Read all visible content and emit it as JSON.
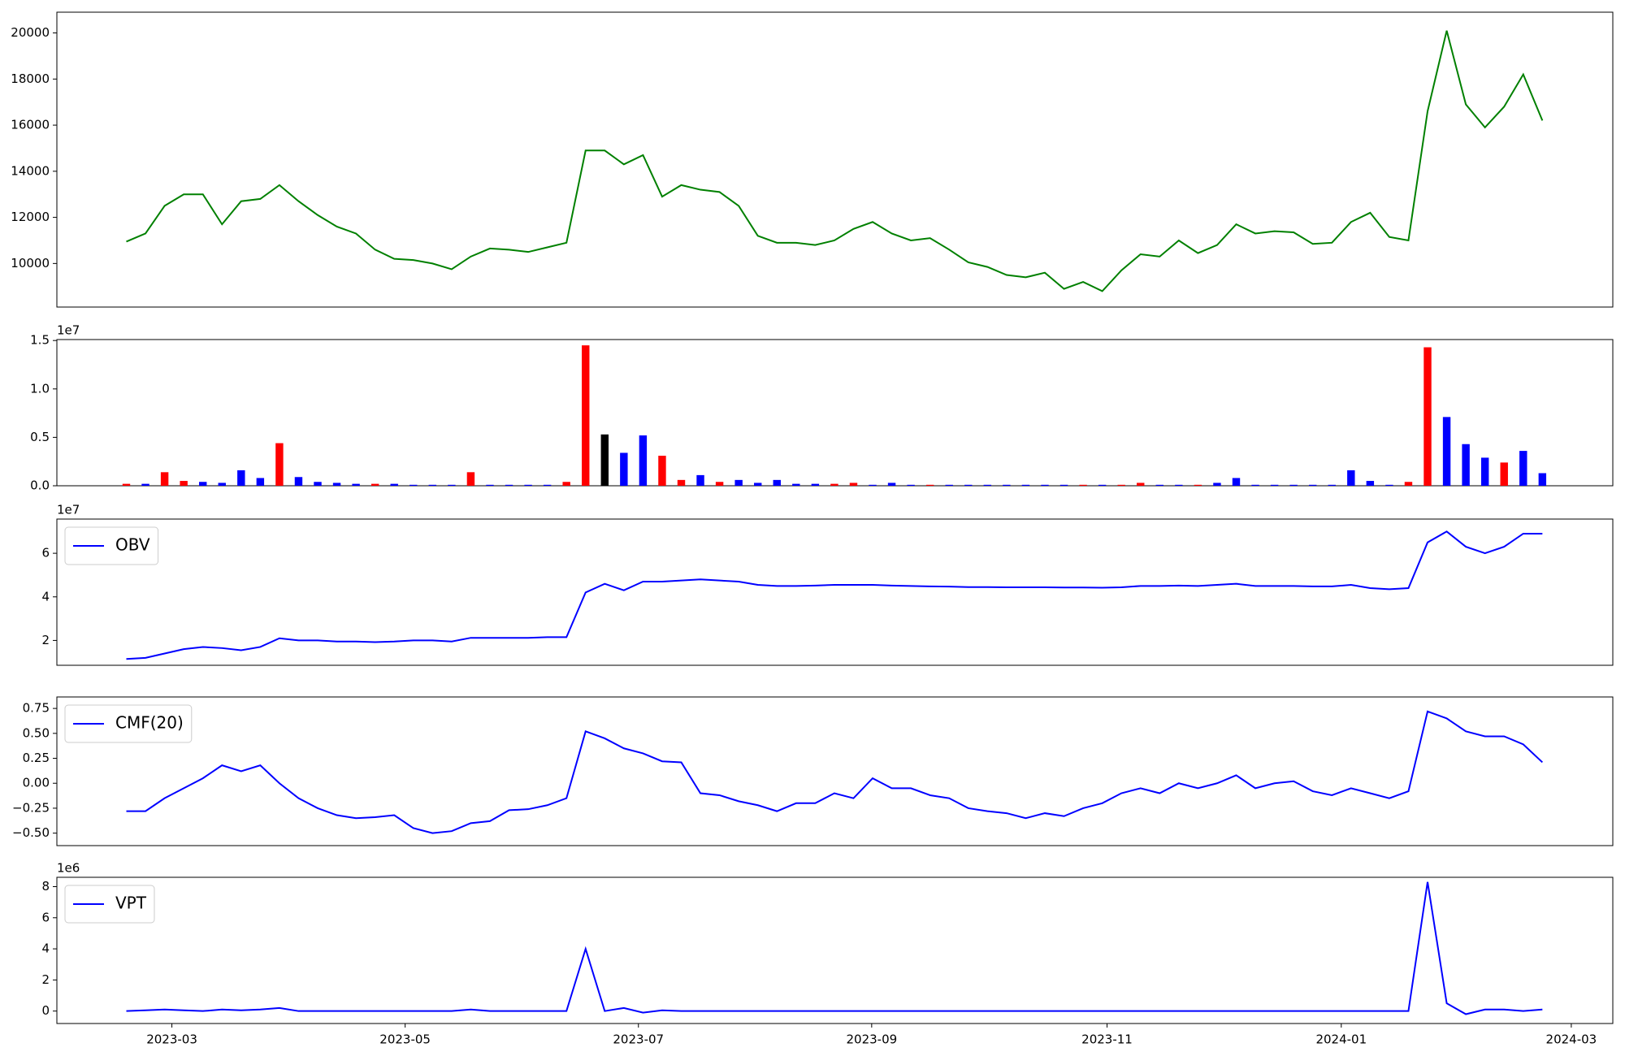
{
  "chart_data": [
    {
      "type": "line",
      "xlim": [
        -3.63,
        77.68
      ],
      "ylim": [
        8110,
        20900
      ],
      "yticks": [
        10000,
        12000,
        14000,
        16000,
        18000,
        20000
      ],
      "series": [
        {
          "color": "#008000",
          "values": [
            10950,
            11300,
            12500,
            13000,
            13000,
            11700,
            12700,
            12800,
            13400,
            12700,
            12100,
            11600,
            11300,
            10600,
            10200,
            10150,
            10000,
            9750,
            10300,
            10650,
            10600,
            10500,
            10700,
            10900,
            14900,
            14900,
            14300,
            14700,
            12900,
            13400,
            13200,
            13100,
            12500,
            11200,
            10900,
            10900,
            10800,
            11000,
            11500,
            11800,
            11300,
            11000,
            11100,
            10600,
            10050,
            9850,
            9500,
            9400,
            9600,
            8900,
            9200,
            8800,
            9700,
            10400,
            10300,
            11000,
            10450,
            10800,
            11700,
            11300,
            11400,
            11350,
            10850,
            10900,
            11800,
            12200,
            11150,
            11000,
            16600,
            20100,
            16900,
            15900,
            16800,
            18200,
            16200
          ]
        }
      ]
    },
    {
      "type": "bar",
      "xlim": [
        -3.63,
        77.68
      ],
      "ylim": [
        0,
        15100000
      ],
      "y_offset_label": "1e7",
      "yticks": [
        {
          "value": 0,
          "label": "0.0"
        },
        {
          "value": 5000000,
          "label": "0.5"
        },
        {
          "value": 10000000,
          "label": "1.0"
        },
        {
          "value": 15000000,
          "label": "1.5"
        }
      ],
      "values": [
        200000,
        200000,
        1400000,
        500000,
        400000,
        300000,
        1600000,
        800000,
        4400000,
        900000,
        400000,
        300000,
        200000,
        200000,
        200000,
        100000,
        100000,
        100000,
        1400000,
        100000,
        100000,
        100000,
        100000,
        400000,
        14500000,
        5300000,
        3400000,
        5200000,
        3100000,
        600000,
        1100000,
        400000,
        600000,
        300000,
        600000,
        200000,
        200000,
        200000,
        300000,
        100000,
        300000,
        100000,
        100000,
        100000,
        100000,
        100000,
        100000,
        100000,
        100000,
        100000,
        100000,
        100000,
        100000,
        300000,
        100000,
        100000,
        100000,
        300000,
        800000,
        100000,
        100000,
        100000,
        100000,
        100000,
        1600000,
        500000,
        100000,
        400000,
        14300000,
        7100000,
        4300000,
        2900000,
        2400000,
        3600000,
        1300000
      ],
      "colors": [
        "red",
        "blue",
        "red",
        "red",
        "blue",
        "blue",
        "blue",
        "blue",
        "red",
        "blue",
        "blue",
        "blue",
        "blue",
        "red",
        "blue",
        "blue",
        "blue",
        "blue",
        "red",
        "blue",
        "blue",
        "blue",
        "blue",
        "red",
        "red",
        "black",
        "blue",
        "blue",
        "red",
        "red",
        "blue",
        "red",
        "blue",
        "blue",
        "blue",
        "blue",
        "blue",
        "red",
        "red",
        "blue",
        "blue",
        "blue",
        "red",
        "blue",
        "blue",
        "blue",
        "blue",
        "blue",
        "blue",
        "blue",
        "red",
        "blue",
        "red",
        "red",
        "blue",
        "blue",
        "red",
        "blue",
        "blue",
        "blue",
        "blue",
        "blue",
        "blue",
        "blue",
        "blue",
        "blue",
        "blue",
        "red",
        "red",
        "blue",
        "blue",
        "blue",
        "red",
        "blue",
        "blue"
      ]
    },
    {
      "type": "line",
      "xlim": [
        -3.63,
        77.68
      ],
      "ylim": [
        8600000,
        75700000
      ],
      "y_offset_label": "1e7",
      "legend": "upper left",
      "yticks": [
        {
          "value": 20000000,
          "label": "2"
        },
        {
          "value": 40000000,
          "label": "4"
        },
        {
          "value": 60000000,
          "label": "6"
        }
      ],
      "series": [
        {
          "name": "OBV",
          "color": "blue",
          "values": [
            11500000,
            12000000,
            14000000,
            16000000,
            17000000,
            16500000,
            15500000,
            17000000,
            21000000,
            20000000,
            20000000,
            19500000,
            19500000,
            19200000,
            19500000,
            20000000,
            20000000,
            19500000,
            21200000,
            21200000,
            21200000,
            21200000,
            21500000,
            21500000,
            42000000,
            46000000,
            43000000,
            47000000,
            47000000,
            47500000,
            48000000,
            47500000,
            47000000,
            45500000,
            45000000,
            45000000,
            45200000,
            45500000,
            45500000,
            45500000,
            45200000,
            45000000,
            44800000,
            44700000,
            44500000,
            44500000,
            44400000,
            44400000,
            44400000,
            44300000,
            44300000,
            44200000,
            44400000,
            45000000,
            45000000,
            45200000,
            45000000,
            45500000,
            46000000,
            45000000,
            45000000,
            45000000,
            44800000,
            44800000,
            45500000,
            44000000,
            43500000,
            44000000,
            65000000,
            70000000,
            63000000,
            60000000,
            63000000,
            69000000,
            69000000
          ]
        }
      ]
    },
    {
      "type": "line",
      "xlim": [
        -3.63,
        77.68
      ],
      "ylim": [
        -0.625,
        0.865
      ],
      "legend": "upper left",
      "yticks": [
        {
          "value": -0.5,
          "label": "−0.50"
        },
        {
          "value": -0.25,
          "label": "−0.25"
        },
        {
          "value": 0,
          "label": "0.00"
        },
        0.25,
        {
          "value": 0.5,
          "label": "0.50"
        },
        0.75
      ],
      "series": [
        {
          "name": "CMF(20)",
          "color": "blue",
          "values": [
            -0.28,
            -0.28,
            -0.15,
            -0.05,
            0.05,
            0.18,
            0.12,
            0.18,
            0,
            -0.15,
            -0.25,
            -0.32,
            -0.35,
            -0.34,
            -0.32,
            -0.45,
            -0.5,
            -0.48,
            -0.4,
            -0.38,
            -0.27,
            -0.26,
            -0.22,
            -0.15,
            0.52,
            0.45,
            0.35,
            0.3,
            0.22,
            0.21,
            -0.1,
            -0.12,
            -0.18,
            -0.22,
            -0.28,
            -0.2,
            -0.2,
            -0.1,
            -0.15,
            0.05,
            -0.05,
            -0.05,
            -0.12,
            -0.15,
            -0.25,
            -0.28,
            -0.3,
            -0.35,
            -0.3,
            -0.33,
            -0.25,
            -0.2,
            -0.1,
            -0.05,
            -0.1,
            0,
            -0.05,
            0,
            0.08,
            -0.05,
            0,
            0.02,
            -0.08,
            -0.12,
            -0.05,
            -0.1,
            -0.15,
            -0.08,
            0.72,
            0.65,
            0.52,
            0.47,
            0.47,
            0.39,
            0.21
          ]
        }
      ]
    },
    {
      "type": "line",
      "xlim": [
        -3.63,
        77.68
      ],
      "ylim": [
        -800000,
        8600000
      ],
      "y_offset_label": "1e6",
      "legend": "upper left",
      "yticks": [
        0,
        {
          "value": 2000000,
          "label": "2"
        },
        {
          "value": 4000000,
          "label": "4"
        },
        {
          "value": 6000000,
          "label": "6"
        },
        {
          "value": 8000000,
          "label": "8"
        }
      ],
      "xticks": [
        {
          "value": 2.38,
          "label": "2023-03"
        },
        {
          "value": 14.57,
          "label": "2023-05"
        },
        {
          "value": 26.76,
          "label": "2023-07"
        },
        {
          "value": 38.95,
          "label": "2023-09"
        },
        {
          "value": 51.25,
          "label": "2023-11"
        },
        {
          "value": 63.49,
          "label": "2024-01"
        },
        {
          "value": 75.51,
          "label": "2024-03"
        }
      ],
      "series": [
        {
          "name": "VPT",
          "color": "blue",
          "values": [
            0,
            50000,
            100000,
            50000,
            0,
            100000,
            50000,
            100000,
            200000,
            0,
            0,
            0,
            0,
            0,
            0,
            0,
            0,
            0,
            100000,
            0,
            0,
            0,
            0,
            0,
            4000000,
            0,
            200000,
            -100000,
            50000,
            0,
            0,
            0,
            0,
            0,
            0,
            0,
            0,
            0,
            0,
            0,
            0,
            0,
            0,
            0,
            0,
            0,
            0,
            0,
            0,
            0,
            0,
            0,
            0,
            0,
            0,
            0,
            0,
            0,
            0,
            0,
            0,
            0,
            0,
            0,
            0,
            0,
            0,
            0,
            8300000,
            500000,
            -200000,
            100000,
            100000,
            0,
            100000
          ]
        }
      ]
    }
  ]
}
